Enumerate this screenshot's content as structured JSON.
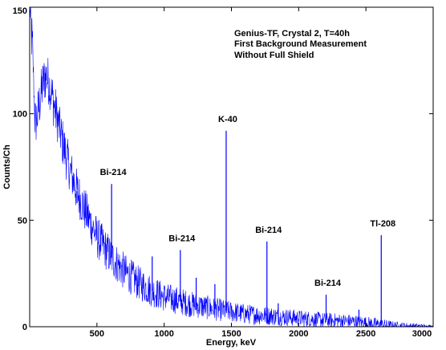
{
  "chart_data": {
    "type": "line",
    "xlabel": "Energy, keV",
    "ylabel": "Counts/Ch",
    "xlim": [
      0,
      3000
    ],
    "ylim": [
      0,
      150
    ],
    "xticks": [
      500,
      1000,
      1500,
      2000,
      2500,
      3000
    ],
    "yticks": [
      0,
      50,
      100,
      150
    ],
    "grid": false,
    "line_color": "#0000ff",
    "annotation_lines": [
      "Genius-TF, Crystal 2, T=40h",
      "First Background Measurement",
      "Without Full Shield"
    ],
    "peaks": [
      {
        "label": "Bi-214",
        "energy_kev": 609,
        "counts": 67
      },
      {
        "label": "Bi-214",
        "energy_kev": 1120,
        "counts": 36
      },
      {
        "label": "K-40",
        "energy_kev": 1461,
        "counts": 92
      },
      {
        "label": "Bi-214",
        "energy_kev": 1764,
        "counts": 40
      },
      {
        "label": "Bi-214",
        "energy_kev": 2204,
        "counts": 15
      },
      {
        "label": "Tl-208",
        "energy_kev": 2614,
        "counts": 43
      }
    ],
    "minor_peaks": [
      {
        "energy_kev": 352,
        "counts": 58
      },
      {
        "energy_kev": 911,
        "counts": 33
      },
      {
        "energy_kev": 1238,
        "counts": 23
      },
      {
        "energy_kev": 1377,
        "counts": 20
      },
      {
        "energy_kev": 1848,
        "counts": 11
      },
      {
        "energy_kev": 2448,
        "counts": 8
      }
    ],
    "continuum": {
      "x": [
        0,
        20,
        40,
        60,
        80,
        100,
        120,
        140,
        160,
        180,
        200,
        250,
        300,
        350,
        400,
        450,
        500,
        600,
        700,
        800,
        900,
        1000,
        1200,
        1400,
        1600,
        1800,
        2000,
        2200,
        2400,
        2600,
        2700,
        3000
      ],
      "y": [
        150,
        130,
        95,
        100,
        108,
        115,
        118,
        115,
        110,
        104,
        99,
        85,
        73,
        64,
        56,
        49,
        42,
        33,
        26,
        21,
        17,
        14,
        10.5,
        8,
        6,
        5,
        4,
        3,
        2.5,
        1,
        0.3,
        0.2
      ]
    },
    "noise": {
      "x": [
        0,
        500,
        1000,
        1500,
        2000,
        2600,
        3000
      ],
      "amplitude": [
        12,
        10,
        7,
        5,
        4,
        3,
        0.5
      ]
    }
  }
}
